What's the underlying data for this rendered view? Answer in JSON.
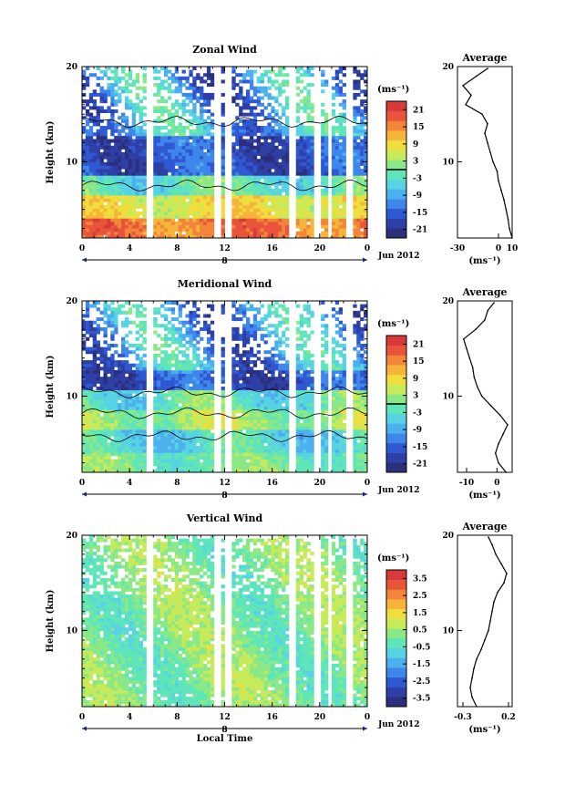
{
  "figure": {
    "xlabel": "Local Time",
    "date_label": "Jun 2012",
    "colorbar_units": "(ms⁻¹)"
  },
  "chart_data": [
    {
      "type": "heatmap",
      "title": "Zonal Wind",
      "ylabel": "Height (km)",
      "xlabel": "",
      "xlim": [
        0,
        24
      ],
      "ylim": [
        2,
        20
      ],
      "x_ticks": [
        "0",
        "4",
        "8",
        "12",
        "16",
        "20",
        "0"
      ],
      "day_label": "8",
      "y_ticks": [
        "10",
        "20"
      ],
      "colorbar": {
        "units": "(ms⁻¹)",
        "ticks": [
          "21",
          "15",
          "9",
          "3",
          "-3",
          "-9",
          "-15",
          "-21"
        ],
        "range": [
          -24,
          24
        ],
        "zero_line": 0
      },
      "profile": {
        "title": "Average",
        "xlabel": "(ms⁻¹)",
        "x_ticks": [
          "-30",
          "0",
          "10"
        ],
        "xlim": [
          -30,
          10
        ],
        "heights": [
          2,
          3,
          4,
          5,
          6,
          7,
          8,
          9,
          10,
          11,
          12,
          13,
          14,
          15,
          16,
          17,
          18,
          19,
          19.8
        ],
        "values": [
          10,
          8,
          7,
          5.5,
          4,
          2,
          0,
          -1,
          -4,
          -6,
          -8,
          -10,
          -8,
          -12,
          -24,
          -20,
          -26,
          -16,
          -8
        ]
      }
    },
    {
      "type": "heatmap",
      "title": "Meridional Wind",
      "ylabel": "Height (km)",
      "xlabel": "",
      "xlim": [
        0,
        24
      ],
      "ylim": [
        2,
        20
      ],
      "x_ticks": [
        "0",
        "4",
        "8",
        "12",
        "16",
        "20",
        "0"
      ],
      "day_label": "8",
      "y_ticks": [
        "10",
        "20"
      ],
      "colorbar": {
        "units": "(ms⁻¹)",
        "ticks": [
          "21",
          "15",
          "9",
          "3",
          "-3",
          "-9",
          "-15",
          "-21"
        ],
        "range": [
          -24,
          24
        ],
        "zero_line": 0
      },
      "profile": {
        "title": "Average",
        "xlabel": "(ms⁻¹)",
        "x_ticks": [
          "-10",
          "0"
        ],
        "xlim": [
          -13,
          5
        ],
        "heights": [
          2,
          3,
          4,
          5,
          6,
          7,
          8,
          9,
          10,
          11,
          12,
          13,
          14,
          15,
          16,
          17,
          18,
          19,
          19.8
        ],
        "values": [
          3,
          0.5,
          -0.5,
          0.5,
          2,
          3.5,
          1,
          -2,
          -5,
          -6.5,
          -7.5,
          -8,
          -9,
          -10,
          -11,
          -7,
          -4,
          -3,
          -1
        ]
      }
    },
    {
      "type": "heatmap",
      "title": "Vertical Wind",
      "ylabel": "Height (km)",
      "xlabel": "Local Time",
      "xlim": [
        0,
        24
      ],
      "ylim": [
        2,
        20
      ],
      "x_ticks": [
        "0",
        "4",
        "8",
        "12",
        "16",
        "20",
        "0"
      ],
      "day_label": "8",
      "y_ticks": [
        "10",
        "20"
      ],
      "colorbar": {
        "units": "(ms⁻¹)",
        "ticks": [
          "3.5",
          "2.5",
          "1.5",
          "0.5",
          "-0.5",
          "-1.5",
          "-2.5",
          "-3.5"
        ],
        "range": [
          -4,
          4
        ],
        "zero_line": null
      },
      "profile": {
        "title": "Average",
        "xlabel": "(ms⁻¹)",
        "x_ticks": [
          "-0.3",
          "0.2"
        ],
        "xlim": [
          -0.36,
          0.24
        ],
        "heights": [
          2,
          3,
          4,
          5,
          6,
          7,
          8,
          9,
          10,
          11,
          12,
          13,
          14,
          15,
          16,
          17,
          18,
          19,
          19.8
        ],
        "values": [
          -0.15,
          -0.2,
          -0.22,
          -0.2,
          -0.18,
          -0.15,
          -0.1,
          -0.06,
          -0.02,
          0,
          0.02,
          0.04,
          0.08,
          0.15,
          0.18,
          0.12,
          0.06,
          0.02,
          -0.02
        ]
      }
    }
  ]
}
